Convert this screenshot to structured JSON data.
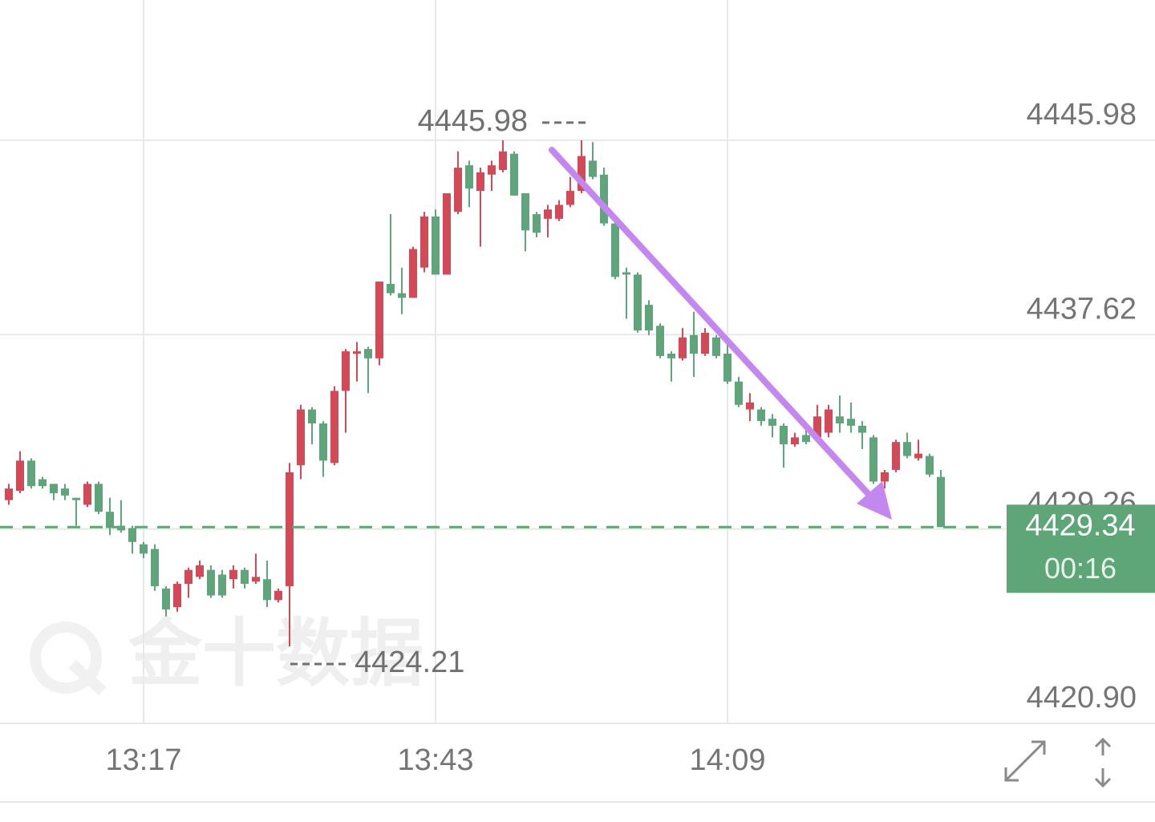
{
  "chart_data": {
    "type": "candlestick",
    "up_color": "#d24a57",
    "down_color": "#5fa47a",
    "grid": true,
    "categories": [
      null,
      null,
      null,
      null,
      null,
      null,
      null,
      null,
      null,
      null,
      null,
      null,
      "13:17",
      null,
      null,
      null,
      null,
      null,
      null,
      null,
      null,
      null,
      null,
      null,
      null,
      null,
      null,
      null,
      null,
      null,
      null,
      null,
      null,
      null,
      null,
      null,
      null,
      null,
      "13:43",
      null,
      null,
      null,
      null,
      null,
      null,
      null,
      null,
      null,
      null,
      null,
      null,
      null,
      null,
      null,
      null,
      null,
      null,
      null,
      null,
      null,
      null,
      null,
      null,
      null,
      "14:09",
      null,
      null,
      null,
      null,
      null,
      null,
      null,
      null,
      null,
      null,
      null,
      null,
      null,
      null,
      null,
      null,
      null,
      null,
      null
    ],
    "open": [
      4430.5,
      4430.9,
      4432.2,
      4431.4,
      4431.2,
      4431.0,
      4430.6,
      4430.3,
      4431.2,
      4430.0,
      4429.4,
      4429.3,
      4428.6,
      4428.4,
      4426.7,
      4425.9,
      4426.9,
      4427.2,
      4427.5,
      4427.3,
      4427.1,
      4427.5,
      4427.0,
      4427.1,
      4426.2,
      4426.8,
      4432.0,
      4434.4,
      4433.8,
      4432.1,
      4435.2,
      4436.8,
      4437.0,
      4436.6,
      4439.8,
      4439.4,
      4439.2,
      4440.5,
      4442.7,
      4440.2,
      4442.9,
      4444.9,
      4443.8,
      4444.5,
      4444.7,
      4445.4,
      4443.7,
      4442.8,
      4442.6,
      4442.6,
      4443.2,
      4443.8,
      4445.1,
      4444.5,
      4442.4,
      4440.3,
      4440.2,
      4438.9,
      4438.0,
      4436.8,
      4436.6,
      4437.6,
      4436.8,
      4437.5,
      4436.8,
      4435.6,
      4434.4,
      4434.4,
      4434.0,
      4433.7,
      4432.9,
      4433.3,
      4433.2,
      4433.4,
      4434.1,
      4434.0,
      4433.7,
      4433.2,
      4431.3,
      4431.8,
      4433.0,
      4432.3,
      4432.4,
      4431.5
    ],
    "high": [
      4431.2,
      4432.6,
      4432.3,
      4431.5,
      4431.2,
      4431.2,
      4430.6,
      4431.3,
      4431.3,
      4430.6,
      4430.5,
      4429.4,
      4428.7,
      4428.6,
      4426.8,
      4427.0,
      4427.6,
      4427.9,
      4427.7,
      4427.5,
      4427.7,
      4427.6,
      4428.2,
      4427.9,
      4426.7,
      4432.1,
      4434.6,
      4434.5,
      4433.9,
      4435.4,
      4437.0,
      4437.3,
      4437.1,
      4439.9,
      4442.8,
      4440.5,
      4441.4,
      4442.9,
      4443.0,
      4443.7,
      4445.5,
      4445.1,
      4444.8,
      4445.1,
      4445.98,
      4445.5,
      4443.7,
      4442.9,
      4443.2,
      4443.4,
      4444.4,
      4445.98,
      4445.9,
      4444.8,
      4442.5,
      4440.5,
      4440.3,
      4439.1,
      4438.1,
      4436.9,
      4437.9,
      4438.6,
      4437.9,
      4437.6,
      4437.2,
      4435.8,
      4435.1,
      4434.5,
      4434.2,
      4433.8,
      4433.4,
      4433.6,
      4434.6,
      4434.6,
      4435.0,
      4434.7,
      4433.9,
      4433.3,
      4431.8,
      4433.1,
      4433.4,
      4433.1,
      4432.5,
      4431.8
    ],
    "low": [
      4430.3,
      4430.8,
      4431.0,
      4431.0,
      4430.5,
      4430.5,
      4429.4,
      4430.2,
      4429.9,
      4429.0,
      4429.1,
      4428.2,
      4428.0,
      4426.6,
      4425.5,
      4425.7,
      4426.3,
      4427.1,
      4426.3,
      4426.3,
      4426.7,
      4426.7,
      4426.9,
      4425.9,
      4426.1,
      4424.21,
      4431.4,
      4432.9,
      4431.5,
      4432.0,
      4433.4,
      4435.6,
      4435.1,
      4436.3,
      4439.3,
      4438.5,
      4439.2,
      4440.3,
      4440.2,
      4440.2,
      4442.8,
      4443.1,
      4441.4,
      4443.8,
      4444.6,
      4443.6,
      4441.2,
      4441.8,
      4441.8,
      4442.5,
      4443.1,
      4443.7,
      4444.3,
      4442.3,
      4440.0,
      4438.3,
      4437.7,
      4437.6,
      4436.6,
      4435.6,
      4436.5,
      4435.8,
      4436.7,
      4436.6,
      4435.5,
      4434.5,
      4433.9,
      4433.7,
      4433.2,
      4431.9,
      4432.8,
      4432.9,
      4433.1,
      4433.2,
      4433.4,
      4433.4,
      4432.7,
      4431.2,
      4431.0,
      4431.7,
      4432.3,
      4432.2,
      4431.5,
      4429.34
    ],
    "close": [
      4431.0,
      4432.2,
      4431.1,
      4431.1,
      4430.8,
      4430.7,
      4430.5,
      4431.2,
      4430.0,
      4429.3,
      4429.2,
      4428.7,
      4428.2,
      4426.8,
      4425.8,
      4426.9,
      4427.5,
      4427.7,
      4426.4,
      4426.4,
      4427.5,
      4426.9,
      4427.2,
      4426.2,
      4426.6,
      4431.7,
      4434.4,
      4433.8,
      4432.2,
      4435.2,
      4436.9,
      4436.9,
      4436.6,
      4439.9,
      4439.4,
      4439.2,
      4441.3,
      4442.7,
      4440.2,
      4443.7,
      4444.8,
      4443.9,
      4444.6,
      4444.9,
      4445.5,
      4443.6,
      4442.1,
      4442.0,
      4443.0,
      4443.2,
      4443.8,
      4445.3,
      4444.4,
      4442.4,
      4440.1,
      4440.2,
      4437.8,
      4437.8,
      4436.7,
      4436.6,
      4437.5,
      4436.8,
      4437.7,
      4436.7,
      4435.6,
      4434.6,
      4434.7,
      4433.9,
      4433.7,
      4432.9,
      4433.2,
      4433.0,
      4434.1,
      4434.4,
      4433.8,
      4433.7,
      4433.4,
      4431.3,
      4431.7,
      4433.0,
      4432.4,
      4432.5,
      4431.6,
      4429.34
    ],
    "ylim": [
      4420.9,
      4452.01
    ],
    "yticks": [
      {
        "value": 4420.9,
        "label": "4420.90"
      },
      4429.26,
      4437.62,
      4445.98
    ],
    "max_label": 4445.98,
    "min_label": 4424.21,
    "last_price": 4429.34,
    "last_price_color": "#5ea577",
    "countdown": "00:16",
    "watermark": "金十数据"
  }
}
